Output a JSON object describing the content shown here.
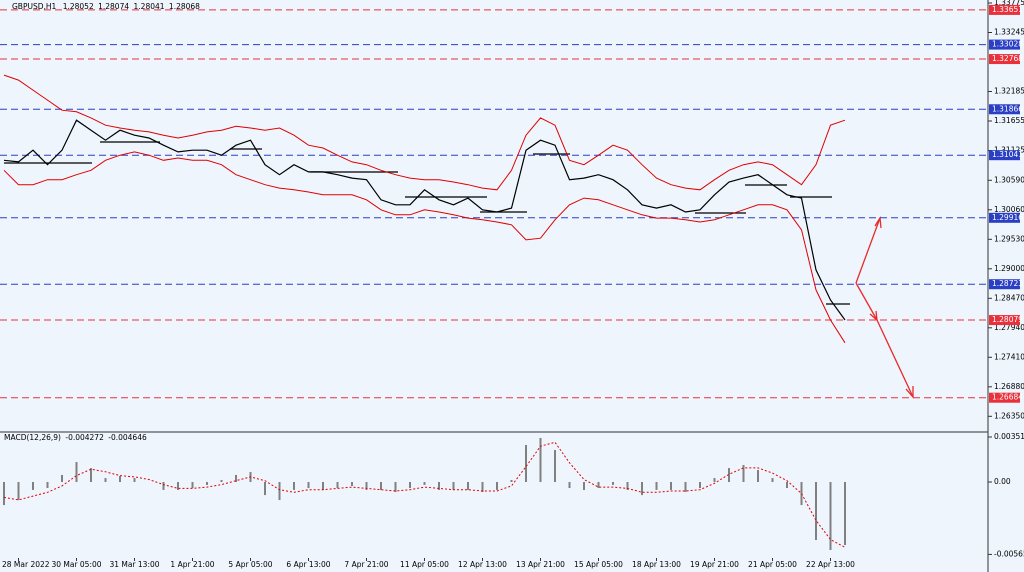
{
  "chart_data": [
    {
      "type": "line",
      "title": "GBPUSD,H1",
      "ohlc": [
        1.28052,
        1.28074,
        1.28041,
        1.28068
      ],
      "categories": [
        null,
        "28 Mar 2022",
        null,
        null,
        null,
        "30 Mar 05:00",
        null,
        null,
        null,
        "31 Mar 13:00",
        null,
        null,
        null,
        "1 Apr 21:00",
        null,
        null,
        null,
        "5 Apr 05:00",
        null,
        null,
        null,
        "6 Apr 13:00",
        null,
        null,
        null,
        "7 Apr 21:00",
        null,
        null,
        null,
        "11 Apr 05:00",
        null,
        null,
        null,
        "12 Apr 13:00",
        null,
        null,
        null,
        "13 Apr 21:00",
        null,
        null,
        null,
        "15 Apr 05:00",
        null,
        null,
        null,
        "18 Apr 13:00",
        null,
        null,
        null,
        "19 Apr 21:00",
        null,
        null,
        null,
        "21 Apr 05:00",
        null,
        null,
        null,
        "22 Apr 13:00",
        null
      ],
      "series": [
        {
          "color": "#000000",
          "values": [
            1.3095,
            1.3092,
            1.3113,
            1.3087,
            1.3113,
            1.3167,
            1.3149,
            1.3131,
            1.3149,
            1.314,
            1.3135,
            1.3122,
            1.311,
            1.3113,
            1.3113,
            1.3104,
            1.3122,
            1.3131,
            1.3087,
            1.3069,
            1.3087,
            1.3074,
            1.3074,
            1.3069,
            1.3063,
            1.306,
            1.3024,
            1.3015,
            1.3015,
            1.3042,
            1.3024,
            1.3015,
            1.3027,
            1.3006,
            1.3002,
            1.3009,
            1.3113,
            1.3131,
            1.3122,
            1.306,
            1.3063,
            1.3069,
            1.306,
            1.3042,
            1.3015,
            1.3009,
            1.3015,
            1.3002,
            1.3006,
            1.3033,
            1.3056,
            1.3063,
            1.3069,
            1.3051,
            1.3033,
            1.3027,
            1.2898,
            1.2844,
            1.2808
          ]
        },
        {
          "color": "#e00000",
          "values": [
            1.3248,
            1.3239,
            1.3221,
            1.3203,
            1.3185,
            1.3182,
            1.3171,
            1.3158,
            1.3153,
            1.3149,
            1.3146,
            1.314,
            1.3135,
            1.314,
            1.3146,
            1.3149,
            1.3156,
            1.3153,
            1.3149,
            1.3153,
            1.314,
            1.3122,
            1.3117,
            1.3104,
            1.3092,
            1.3087,
            1.3077,
            1.3069,
            1.3063,
            1.306,
            1.306,
            1.3056,
            1.3051,
            1.3045,
            1.3042,
            1.3077,
            1.314,
            1.3171,
            1.3158,
            1.3095,
            1.3087,
            1.3104,
            1.3122,
            1.3113,
            1.3087,
            1.3063,
            1.3051,
            1.3045,
            1.3042,
            1.306,
            1.3077,
            1.3087,
            1.3092,
            1.3087,
            1.3069,
            1.3051,
            1.3087,
            1.3158,
            1.3167
          ]
        },
        {
          "color": "#e00000",
          "values": [
            1.3077,
            1.3051,
            1.3051,
            1.306,
            1.306,
            1.3069,
            1.3077,
            1.3095,
            1.3104,
            1.311,
            1.3104,
            1.3095,
            1.3099,
            1.3095,
            1.3095,
            1.3087,
            1.3069,
            1.306,
            1.3051,
            1.3045,
            1.3042,
            1.3038,
            1.3033,
            1.3033,
            1.3033,
            1.3024,
            1.3006,
            1.2997,
            1.2997,
            1.3006,
            1.3002,
            1.2997,
            1.2991,
            1.2988,
            1.2984,
            1.2979,
            1.2952,
            1.2955,
            1.2988,
            1.3015,
            1.3027,
            1.3024,
            1.3015,
            1.3006,
            1.2997,
            1.2991,
            1.2991,
            1.2988,
            1.2984,
            1.2988,
            1.2997,
            1.3006,
            1.3015,
            1.3015,
            1.3006,
            1.297,
            1.2862,
            1.2808,
            1.2767
          ]
        }
      ],
      "ylim": [
        1.26068,
        1.33829
      ],
      "yticks": [
        1.33775,
        1.33245,
        1.32185,
        1.31655,
        1.31125,
        {
          "value": 1.3059,
          "label": "1.30590"
        },
        {
          "value": 1.3006,
          "label": "1.30060"
        },
        {
          "value": 1.2953,
          "label": "1.29530"
        },
        {
          "value": 1.29,
          "label": "1.29000"
        },
        {
          "value": 1.2847,
          "label": "1.28470"
        },
        {
          "value": 1.2794,
          "label": "1.27940"
        },
        {
          "value": 1.2741,
          "label": "1.27410"
        },
        {
          "value": 1.2688,
          "label": "1.26880"
        },
        {
          "value": 1.2635,
          "label": "1.26350"
        }
      ],
      "levels": [
        {
          "value": 1.33651,
          "color": "#e8313b"
        },
        {
          "value": 1.33028,
          "color": "#2a3fc4"
        },
        {
          "value": 1.32768,
          "color": "#e8313b"
        },
        {
          "value": 1.31866,
          "color": "#2a3fc4"
        },
        {
          "value": 1.31041,
          "color": "#2a3fc4"
        },
        {
          "value": 1.29916,
          "color": "#2a3fc4"
        },
        {
          "value": 1.28723,
          "color": "#2a3fc4"
        },
        {
          "value": 1.28079,
          "color": "#e8313b"
        },
        {
          "value": 1.26684,
          "color": "#e8313b"
        }
      ]
    },
    {
      "type": "bar",
      "title": "MACD(12,26,9)",
      "indicator_values": [
        -0.004272,
        -0.004646
      ],
      "series": [
        {
          "kind": "bar",
          "color": "#808080",
          "values": [
            -0.0018,
            -0.00141,
            -0.00062,
            -0.00047,
            0.00055,
            0.00156,
            0.00109,
            0.00031,
            0.00047,
            0.00031,
            0,
            -0.00062,
            -0.00062,
            -0.00047,
            -0.00023,
            0.00016,
            0.00055,
            0.00078,
            -0.00102,
            -0.00141,
            -0.00062,
            -0.00047,
            -0.00062,
            -0.00047,
            -0.00031,
            -0.00062,
            -0.00062,
            -0.00078,
            -0.00047,
            -0.00023,
            -0.00062,
            -0.00062,
            -0.00062,
            -0.00078,
            -0.00062,
            0.00016,
            0.00289,
            0.00344,
            0.0025,
            -0.00047,
            -0.00062,
            -0.00047,
            -0.00023,
            -0.00062,
            -0.00102,
            -0.00062,
            -0.00062,
            -0.00078,
            -0.00047,
            0.00031,
            0.00109,
            0.00133,
            0.00094,
            0.00031,
            -0.00047,
            -0.0018,
            -0.00453,
            -0.00531,
            -0.00492
          ]
        },
        {
          "kind": "line",
          "color": "#e00000",
          "values": [
            -0.0012,
            -0.0014,
            -0.0011,
            -0.0008,
            -0.0003,
            0.0005,
            0.001,
            0.0008,
            0.0005,
            0.0004,
            0.0002,
            -0.0002,
            -0.0005,
            -0.0005,
            -0.0004,
            -0.0002,
            0.0001,
            0.0004,
            0.0001,
            -0.0006,
            -0.0008,
            -0.0006,
            -0.0006,
            -0.0005,
            -0.0004,
            -0.0005,
            -0.0006,
            -0.0007,
            -0.0006,
            -0.0004,
            -0.0005,
            -0.0006,
            -0.0006,
            -0.0007,
            -0.0007,
            -0.0003,
            0.0012,
            0.0028,
            0.0031,
            0.0015,
            0.0002,
            -0.0004,
            -0.0004,
            -0.0005,
            -0.0008,
            -0.0008,
            -0.0007,
            -0.0007,
            -0.0006,
            -0.0001,
            0.0006,
            0.0011,
            0.0011,
            0.0007,
            0.0001,
            -0.0009,
            -0.003,
            -0.0045,
            -0.0051
          ]
        }
      ],
      "ylim": [
        -0.00695,
        0.003828
      ],
      "yticks": [
        0.003515,
        {
          "value": 0,
          "label": "0.00"
        },
        -0.005654
      ]
    }
  ]
}
